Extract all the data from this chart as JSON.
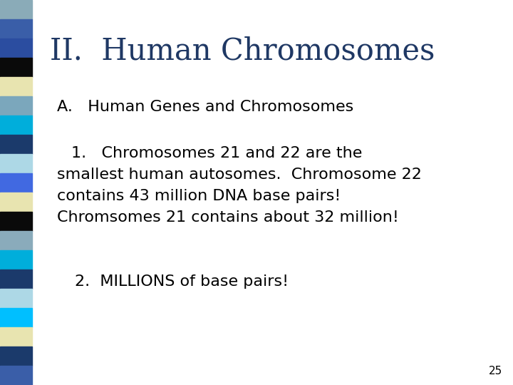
{
  "title": "II.  Human Chromosomes",
  "title_color": "#1F3864",
  "subtitle": "A.   Human Genes and Chromosomes",
  "body_line1": "1.   Chromosomes 21 and 22 are the",
  "body_line2": "smallest human autosomes.  Chromosome 22",
  "body_line3": "contains 43 million DNA base pairs!",
  "body_line4": "Chromsomes 21 contains about 32 million!",
  "item2": "2.  MILLIONS of base pairs!",
  "page_num": "25",
  "bg_color": "#ffffff",
  "text_color": "#000000",
  "stripe_colors": [
    "#8AABB8",
    "#3A5EA8",
    "#2B4DA0",
    "#0a0a0a",
    "#E8E4B0",
    "#7BA7BC",
    "#00AEDB",
    "#1B3A6B",
    "#ADD8E6",
    "#4169E1",
    "#E8E4B0",
    "#0a0a0a",
    "#8AABBB",
    "#00AEDB",
    "#1B3A6B",
    "#ADD8E6",
    "#00BFFF",
    "#E8E4B0",
    "#1B3A6B",
    "#3A5EA8"
  ]
}
